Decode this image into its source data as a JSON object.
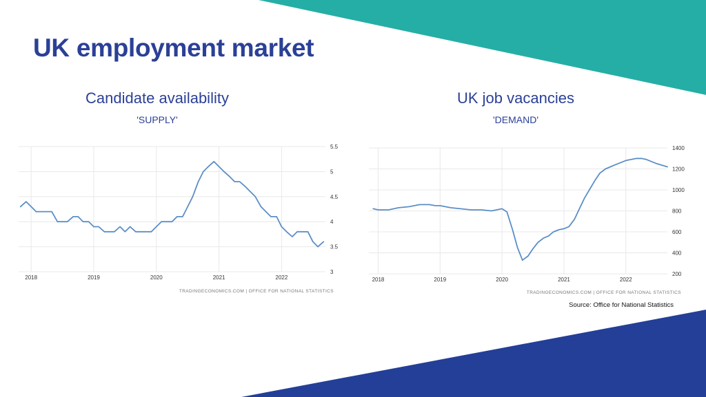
{
  "slide": {
    "title": "UK employment market",
    "source": "Source: Office for National Statistics"
  },
  "colors": {
    "title": "#2b4096",
    "teal": "#25aea5",
    "navy": "#233f97",
    "line": "#5b8ec6",
    "grid": "#e8e8e8"
  },
  "chart_data": [
    {
      "type": "line",
      "title": "Candidate availability",
      "subtitle": "'SUPPLY'",
      "credit": "TRADINGECONOMICS.COM  |  OFFICE FOR NATIONAL STATISTICS",
      "xlim": [
        2017.8,
        2022.7
      ],
      "ylim": [
        3,
        5.5
      ],
      "x_ticks": [
        2018,
        2019,
        2020,
        2021,
        2022
      ],
      "x_tick_labels": [
        "2018",
        "2019",
        "2020",
        "2021",
        "2022"
      ],
      "y_ticks": [
        3,
        3.5,
        4,
        4.5,
        5,
        5.5
      ],
      "y_tick_labels": [
        "3",
        "3.5",
        "4",
        "4.5",
        "5",
        "5.5"
      ],
      "grid": true,
      "y_axis_side": "right",
      "series": [
        {
          "x": [
            2017.83,
            2017.92,
            2018.0,
            2018.08,
            2018.17,
            2018.25,
            2018.33,
            2018.42,
            2018.5,
            2018.58,
            2018.67,
            2018.75,
            2018.83,
            2018.92,
            2019.0,
            2019.08,
            2019.17,
            2019.25,
            2019.33,
            2019.42,
            2019.5,
            2019.58,
            2019.67,
            2019.75,
            2019.83,
            2019.92,
            2020.0,
            2020.08,
            2020.17,
            2020.25,
            2020.33,
            2020.42,
            2020.5,
            2020.58,
            2020.67,
            2020.75,
            2020.83,
            2020.92,
            2021.0,
            2021.08,
            2021.17,
            2021.25,
            2021.33,
            2021.42,
            2021.5,
            2021.58,
            2021.67,
            2021.75,
            2021.83,
            2021.92,
            2022.0,
            2022.08,
            2022.17,
            2022.25,
            2022.33,
            2022.42,
            2022.5,
            2022.58,
            2022.67
          ],
          "y": [
            4.3,
            4.4,
            4.3,
            4.2,
            4.2,
            4.2,
            4.2,
            4.0,
            4.0,
            4.0,
            4.1,
            4.1,
            4.0,
            4.0,
            3.9,
            3.9,
            3.8,
            3.8,
            3.8,
            3.9,
            3.8,
            3.9,
            3.8,
            3.8,
            3.8,
            3.8,
            3.9,
            4.0,
            4.0,
            4.0,
            4.1,
            4.1,
            4.3,
            4.5,
            4.8,
            5.0,
            5.1,
            5.2,
            5.1,
            5.0,
            4.9,
            4.8,
            4.8,
            4.7,
            4.6,
            4.5,
            4.3,
            4.2,
            4.1,
            4.1,
            3.9,
            3.8,
            3.7,
            3.8,
            3.8,
            3.8,
            3.6,
            3.5,
            3.6
          ]
        }
      ]
    },
    {
      "type": "line",
      "title": "UK job vacancies",
      "subtitle": "'DEMAND'",
      "credit": "TRADINGECONOMICS.COM  |  OFFICE FOR NATIONAL STATISTICS",
      "xlim": [
        2017.85,
        2022.67
      ],
      "ylim": [
        200,
        1400
      ],
      "x_ticks": [
        2018,
        2019,
        2020,
        2021,
        2022
      ],
      "x_tick_labels": [
        "2018",
        "2019",
        "2020",
        "2021",
        "2022"
      ],
      "y_ticks": [
        200,
        400,
        600,
        800,
        1000,
        1200,
        1400
      ],
      "y_tick_labels": [
        "200",
        "400",
        "600",
        "800",
        "1000",
        "1200",
        "1400"
      ],
      "grid": true,
      "y_axis_side": "right",
      "series": [
        {
          "x": [
            2017.92,
            2018.0,
            2018.17,
            2018.33,
            2018.5,
            2018.67,
            2018.83,
            2018.92,
            2019.0,
            2019.17,
            2019.33,
            2019.5,
            2019.67,
            2019.83,
            2020.0,
            2020.08,
            2020.17,
            2020.25,
            2020.33,
            2020.42,
            2020.5,
            2020.58,
            2020.67,
            2020.75,
            2020.83,
            2020.92,
            2021.0,
            2021.08,
            2021.17,
            2021.25,
            2021.33,
            2021.42,
            2021.5,
            2021.58,
            2021.67,
            2021.83,
            2022.0,
            2022.17,
            2022.25,
            2022.33,
            2022.5,
            2022.67
          ],
          "y": [
            820,
            810,
            810,
            830,
            840,
            860,
            860,
            850,
            850,
            830,
            820,
            810,
            810,
            800,
            820,
            790,
            620,
            450,
            330,
            370,
            440,
            500,
            540,
            560,
            600,
            620,
            630,
            650,
            720,
            820,
            920,
            1010,
            1090,
            1160,
            1200,
            1240,
            1280,
            1300,
            1300,
            1290,
            1250,
            1220
          ]
        }
      ]
    }
  ]
}
